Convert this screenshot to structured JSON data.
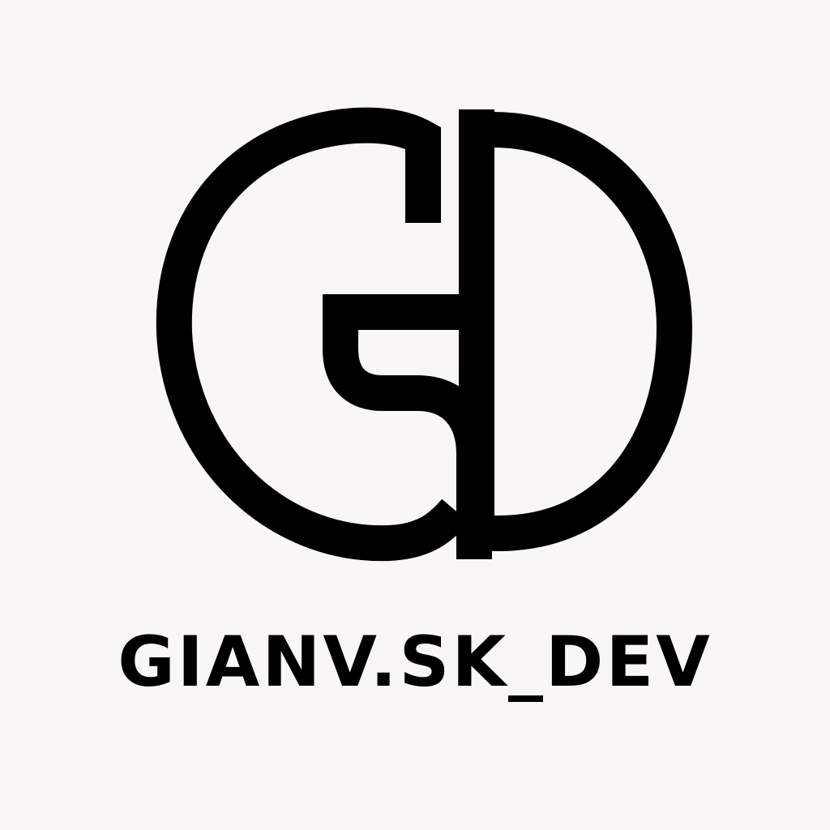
{
  "brand": {
    "wordmark": "GIANV.SK_DEV",
    "monogram_icon": "gd-monogram-icon"
  },
  "colors": {
    "ink": "#000000",
    "background": "#f8f7f5"
  }
}
